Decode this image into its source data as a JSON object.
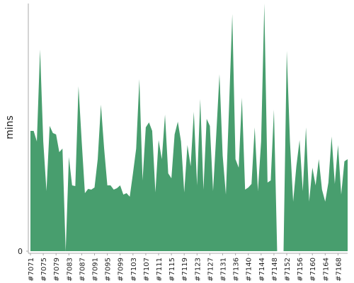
{
  "chart_data": {
    "type": "area",
    "y_label": "mins",
    "color": "#489e6e",
    "categories": [
      "#7071",
      null,
      null,
      null,
      "#7075",
      null,
      null,
      null,
      "#7079",
      null,
      null,
      null,
      "#7083",
      null,
      null,
      null,
      "#7087",
      null,
      null,
      null,
      "#7091",
      null,
      null,
      null,
      "#7095",
      null,
      null,
      null,
      "#7099",
      null,
      null,
      null,
      "#7103",
      null,
      null,
      null,
      "#7107",
      null,
      null,
      null,
      "#7111",
      null,
      null,
      null,
      "#7115",
      null,
      null,
      null,
      "#7119",
      null,
      null,
      null,
      "#7123",
      null,
      null,
      null,
      "#7127",
      null,
      null,
      null,
      "#7131",
      null,
      null,
      null,
      "#7136",
      null,
      null,
      null,
      "#7140",
      null,
      null,
      null,
      "#7144",
      null,
      null,
      null,
      "#7148",
      null,
      null,
      null,
      "#7152",
      null,
      null,
      null,
      "#7156",
      null,
      null,
      null,
      "#7160",
      null,
      null,
      null,
      "#7164",
      null,
      null,
      null,
      "#7168",
      null,
      null,
      null
    ],
    "values": [
      17.0,
      17.0,
      15.5,
      28.5,
      15.5,
      8.5,
      17.7,
      16.7,
      16.5,
      14.0,
      14.5,
      0,
      13.3,
      9.3,
      9.2,
      23.3,
      15.5,
      8.2,
      8.8,
      8.7,
      9.0,
      13.0,
      20.7,
      14.5,
      9.3,
      9.3,
      8.7,
      8.9,
      9.3,
      8.0,
      8.2,
      7.7,
      11.0,
      14.5,
      24.3,
      10.0,
      17.5,
      18.2,
      17.0,
      8.3,
      15.7,
      13.0,
      19.3,
      11.0,
      10.3,
      16.5,
      18.3,
      15.5,
      8.3,
      15.0,
      12.0,
      19.7,
      9.3,
      21.5,
      8.7,
      18.7,
      17.7,
      8.5,
      16.5,
      25.0,
      13.5,
      8.0,
      20.5,
      33.5,
      13.0,
      11.8,
      21.7,
      8.7,
      9.0,
      9.5,
      17.5,
      8.5,
      15.5,
      35,
      9.7,
      10.0,
      20.0,
      0,
      0,
      0,
      28.3,
      15.5,
      7.0,
      12.0,
      15.7,
      8.5,
      17.5,
      7.0,
      11.8,
      9.3,
      13.0,
      8.7,
      7.0,
      9.7,
      16.2,
      9.5,
      15.0,
      8.0,
      12.7,
      13.0
    ],
    "ylim": [
      0,
      35
    ],
    "yticks": [
      0
    ]
  }
}
